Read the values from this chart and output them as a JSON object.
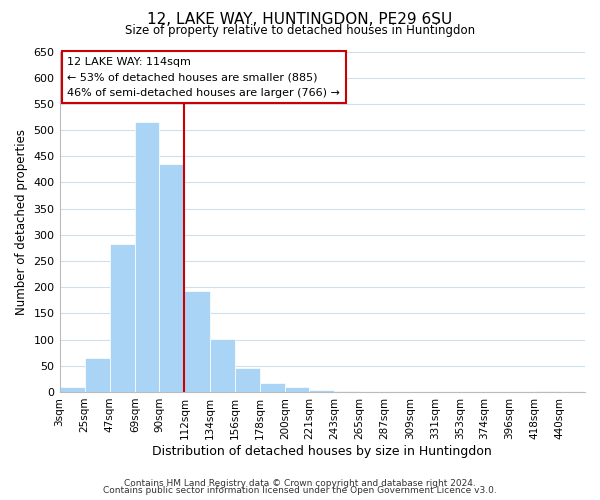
{
  "title": "12, LAKE WAY, HUNTINGDON, PE29 6SU",
  "subtitle": "Size of property relative to detached houses in Huntingdon",
  "xlabel": "Distribution of detached houses by size in Huntingdon",
  "ylabel": "Number of detached properties",
  "footer_line1": "Contains HM Land Registry data © Crown copyright and database right 2024.",
  "footer_line2": "Contains public sector information licensed under the Open Government Licence v3.0.",
  "bin_labels": [
    "3sqm",
    "25sqm",
    "47sqm",
    "69sqm",
    "90sqm",
    "112sqm",
    "134sqm",
    "156sqm",
    "178sqm",
    "200sqm",
    "221sqm",
    "243sqm",
    "265sqm",
    "287sqm",
    "309sqm",
    "331sqm",
    "353sqm",
    "374sqm",
    "396sqm",
    "418sqm",
    "440sqm"
  ],
  "bar_heights": [
    10,
    65,
    283,
    515,
    435,
    193,
    102,
    46,
    18,
    10,
    3,
    2,
    0,
    0,
    0,
    0,
    0,
    0,
    0,
    2
  ],
  "bar_color": "#aad4f5",
  "vline_x_index": 5,
  "vline_color": "#cc0000",
  "ylim": [
    0,
    650
  ],
  "yticks": [
    0,
    50,
    100,
    150,
    200,
    250,
    300,
    350,
    400,
    450,
    500,
    550,
    600,
    650
  ],
  "annotation_title": "12 LAKE WAY: 114sqm",
  "annotation_line1": "← 53% of detached houses are smaller (885)",
  "annotation_line2": "46% of semi-detached houses are larger (766) →",
  "annotation_box_edge_color": "#cc0000",
  "background_color": "#ffffff",
  "grid_color": "#cce0f0",
  "bin_starts": [
    3,
    25,
    47,
    69,
    90,
    112,
    134,
    156,
    178,
    200,
    221,
    243,
    265,
    287,
    309,
    331,
    353,
    374,
    396,
    418
  ],
  "xlim_end": 462
}
